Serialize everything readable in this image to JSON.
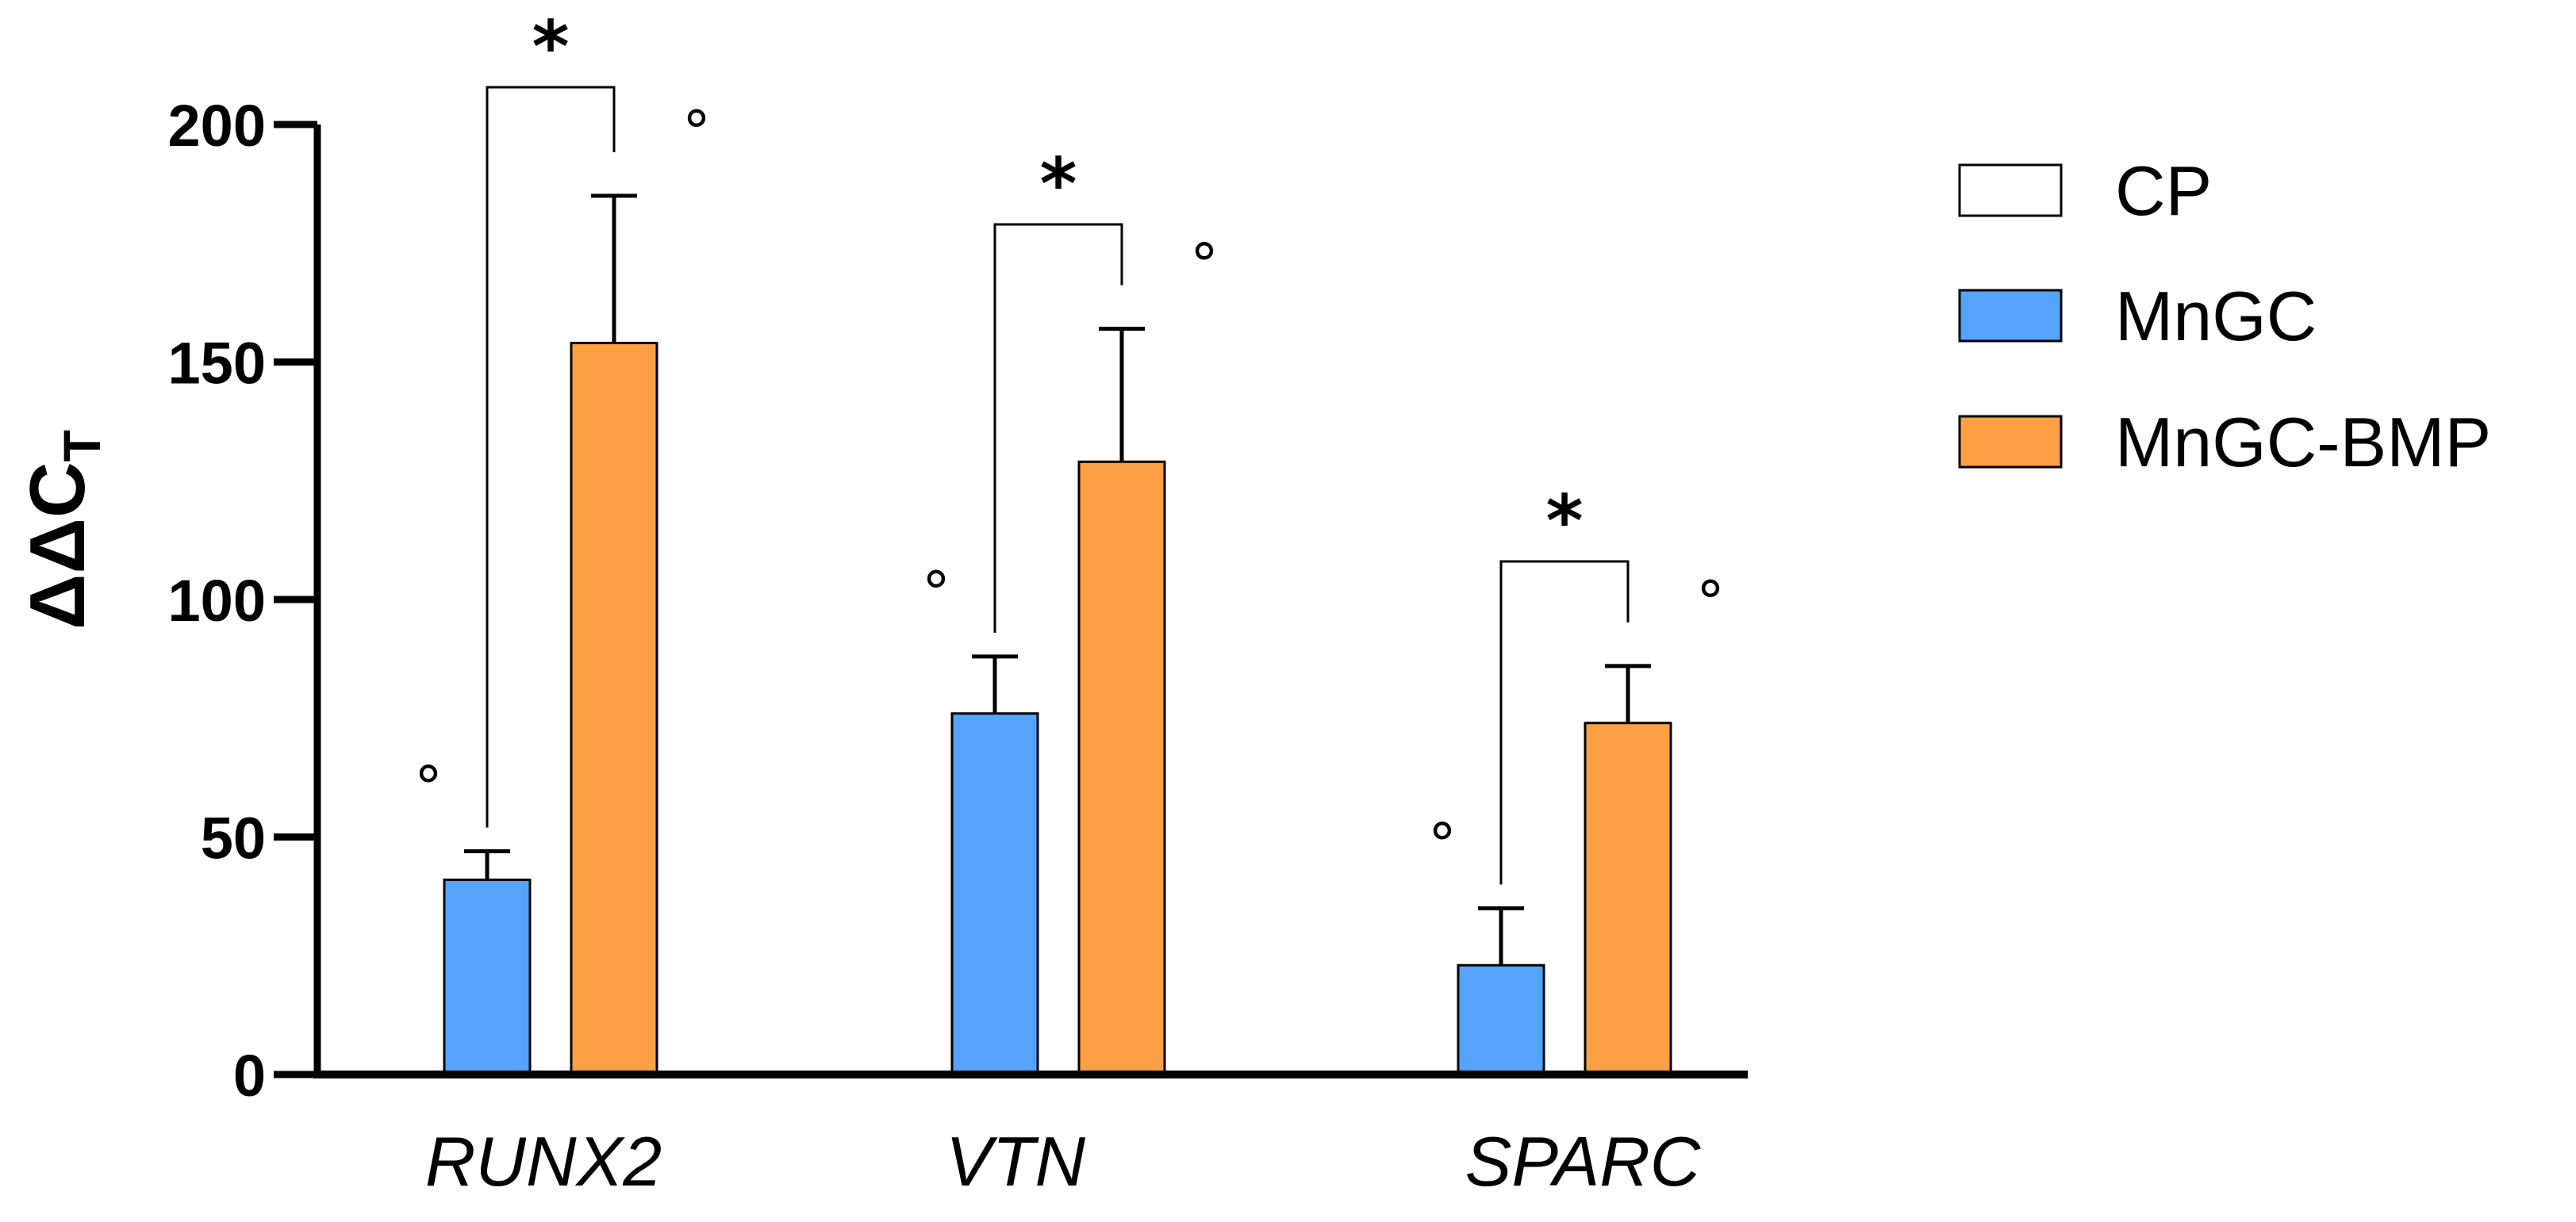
{
  "chart_data": {
    "type": "bar",
    "title": "",
    "xlabel": "",
    "ylabel": {
      "main": "ΔΔC",
      "subscript": "T"
    },
    "ylim": [
      0,
      200
    ],
    "yticks": [
      0,
      50,
      100,
      150,
      200
    ],
    "yticks_labels": [
      "0",
      "50",
      "100",
      "150",
      "200"
    ],
    "categories": [
      "RUNX2",
      "VTN",
      "SPARC"
    ],
    "series": [
      {
        "name": "CP",
        "color": "#ffffff",
        "values": [
          0,
          0,
          0
        ],
        "errors": [
          0,
          0,
          0
        ],
        "markers": [
          false,
          false,
          false
        ]
      },
      {
        "name": "MnGC",
        "color": "#56a3fc",
        "values": [
          41,
          76,
          23
        ],
        "errors": [
          6,
          12,
          12
        ],
        "markers": [
          true,
          true,
          true
        ]
      },
      {
        "name": "MnGC-BMP",
        "color": "#fca043",
        "values": [
          154,
          129,
          74
        ],
        "errors": [
          31,
          28,
          12
        ],
        "markers": [
          true,
          true,
          true
        ]
      }
    ],
    "significance": [
      {
        "category": "RUNX2",
        "from": "MnGC",
        "to": "MnGC-BMP",
        "label": "*"
      },
      {
        "category": "VTN",
        "from": "MnGC",
        "to": "MnGC-BMP",
        "label": "*"
      },
      {
        "category": "SPARC",
        "from": "MnGC",
        "to": "MnGC-BMP",
        "label": "*"
      }
    ],
    "marker_symbol": "°",
    "legend_position": "right",
    "grid": false
  }
}
